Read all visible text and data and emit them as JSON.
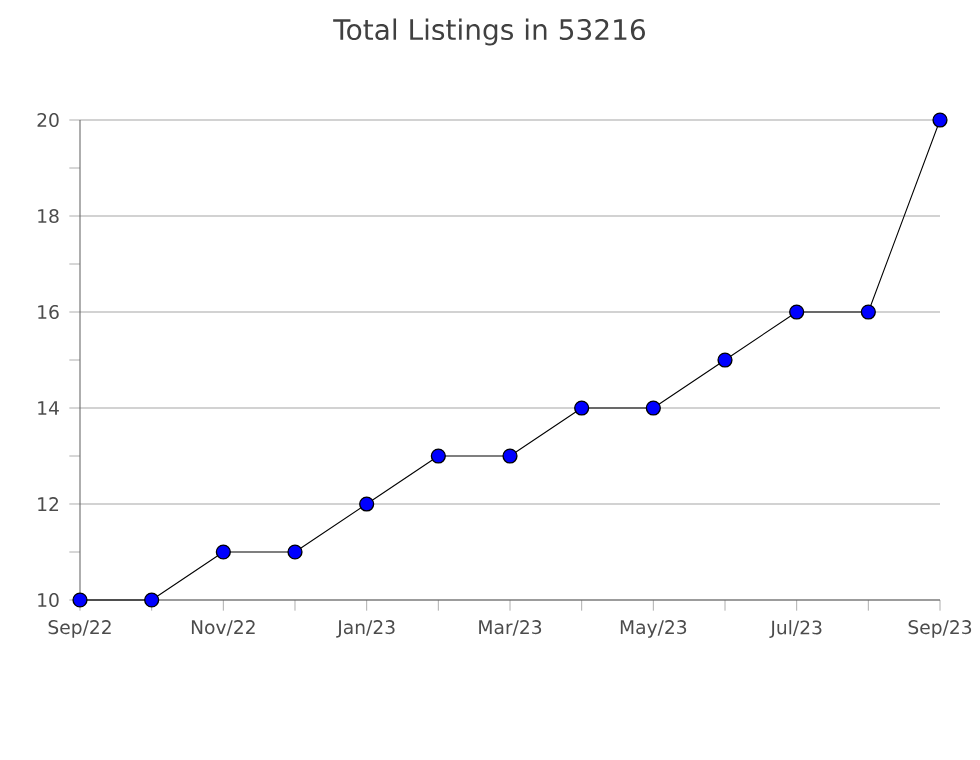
{
  "chart_data": {
    "type": "line",
    "title": "Total Listings in 53216",
    "categories": [
      "Sep/22",
      null,
      "Nov/22",
      null,
      "Jan/23",
      null,
      "Mar/23",
      null,
      "May/23",
      null,
      "Jul/23",
      null,
      "Sep/23"
    ],
    "series": [
      {
        "color": "#0000ff",
        "values": [
          10,
          10,
          11,
          11,
          12,
          13,
          13,
          14,
          14,
          15,
          16,
          16,
          20
        ]
      }
    ],
    "ylim": [
      10,
      20
    ],
    "yticks": [
      10,
      {
        "value": 11,
        "label": null
      },
      12,
      {
        "value": 13,
        "label": null
      },
      14,
      {
        "value": 15,
        "label": null
      },
      16,
      {
        "value": 17,
        "label": null
      },
      18,
      {
        "value": 19,
        "label": null
      },
      20
    ],
    "grid": "y",
    "marker": "circle",
    "line_style": "solid"
  }
}
